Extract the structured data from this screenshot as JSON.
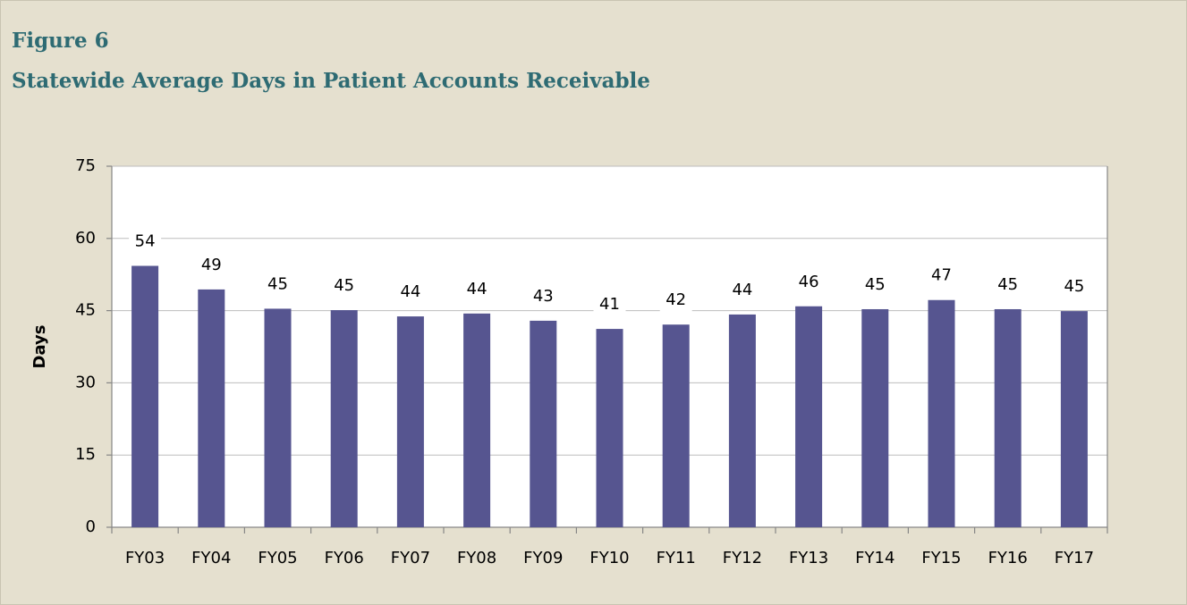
{
  "chart_data": {
    "type": "bar",
    "title": "Figure 6",
    "subtitle": "Statewide Average Days in Patient Accounts Receivable",
    "y_label": "Days",
    "categories": [
      "FY03",
      "FY04",
      "FY05",
      "FY06",
      "FY07",
      "FY08",
      "FY09",
      "FY10",
      "FY11",
      "FY12",
      "FY13",
      "FY14",
      "FY15",
      "FY16",
      "FY17"
    ],
    "values": [
      54.3,
      49.4,
      45.4,
      45.1,
      43.8,
      44.4,
      42.9,
      41.2,
      42.1,
      44.2,
      45.9,
      45.3,
      47.2,
      45.3,
      44.9
    ],
    "value_labels": [
      "54",
      "49",
      "45",
      "45",
      "44",
      "44",
      "43",
      "41",
      "42",
      "44",
      "46",
      "45",
      "47",
      "45",
      "45"
    ],
    "color": "#565590",
    "ylim": [
      0,
      75
    ],
    "yticks": [
      0,
      15,
      30,
      45,
      60,
      75
    ],
    "grid": true
  }
}
